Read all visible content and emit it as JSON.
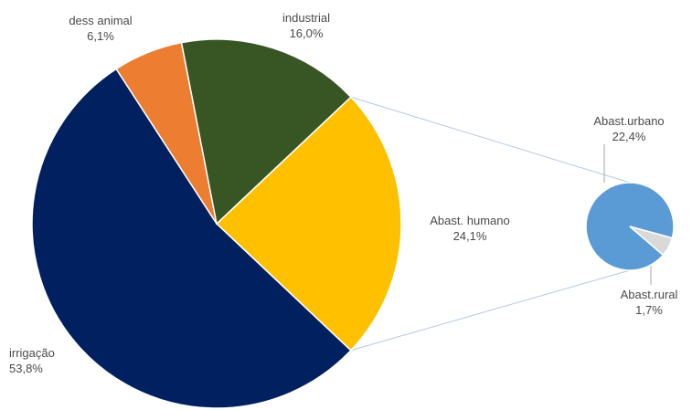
{
  "chart_data": {
    "type": "pie",
    "subtype": "pie-of-pie",
    "main_pie": {
      "slices": [
        {
          "label": "Abast. humano",
          "value_text": "24,1%",
          "value": 24.1,
          "color": "#ffc000"
        },
        {
          "label": "irrigação",
          "value_text": "53,8%",
          "value": 53.8,
          "color": "#002060"
        },
        {
          "label": "dess animal",
          "value_text": "6,1%",
          "value": 6.1,
          "color": "#ed7d31"
        },
        {
          "label": "industrial",
          "value_text": "16,0%",
          "value": 16.0,
          "color": "#375623"
        }
      ]
    },
    "secondary_pie": {
      "source_slice": "Abast. humano",
      "slices": [
        {
          "label": "Abast.urbano",
          "value_text": "22,4%",
          "value": 22.4,
          "color": "#5b9bd5"
        },
        {
          "label": "Abast.rural",
          "value_text": "1,7%",
          "value": 1.7,
          "color": "#d9d9d9"
        }
      ]
    },
    "connector_color": "#b4c6e7",
    "leader_line_color": "#a6a6a6"
  }
}
